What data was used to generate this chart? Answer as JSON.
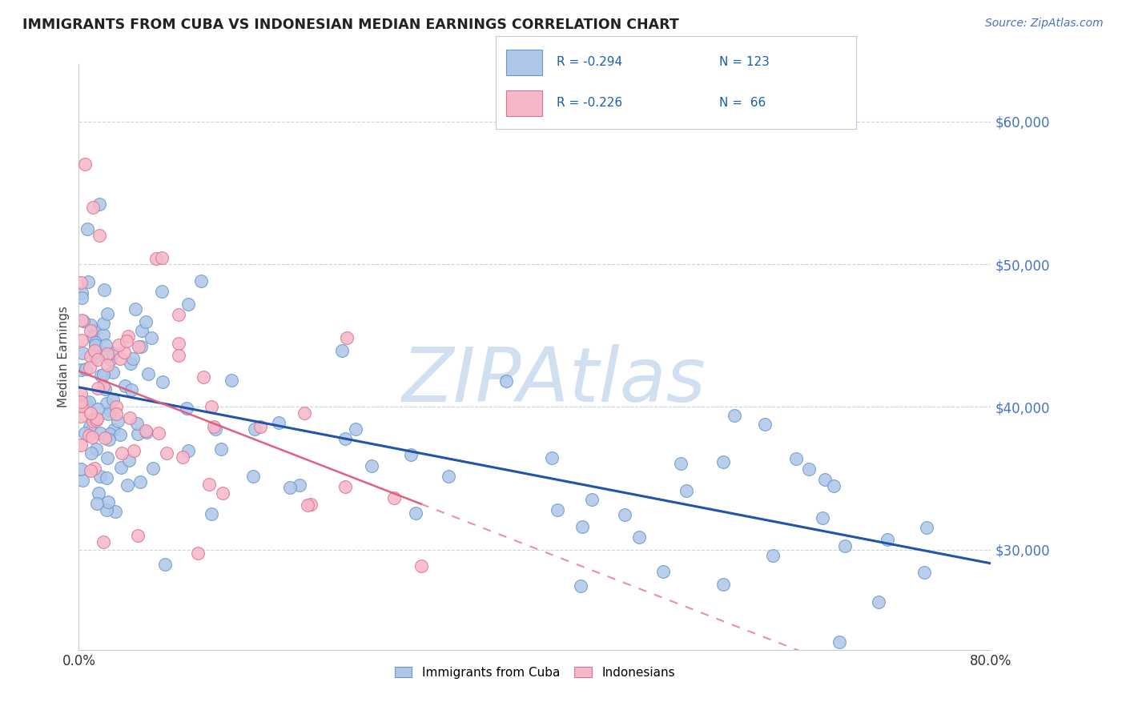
{
  "title": "IMMIGRANTS FROM CUBA VS INDONESIAN MEDIAN EARNINGS CORRELATION CHART",
  "source": "Source: ZipAtlas.com",
  "ylabel": "Median Earnings",
  "yticks": [
    30000,
    40000,
    50000,
    60000
  ],
  "ytick_labels": [
    "$30,000",
    "$40,000",
    "$50,000",
    "$60,000"
  ],
  "xlim": [
    0.0,
    80.0
  ],
  "ylim": [
    23000,
    64000
  ],
  "color_cuba": "#aec6e8",
  "color_cuba_edge": "#6699cc",
  "color_indonesia": "#f5b8c8",
  "color_indonesia_edge": "#e07090",
  "color_cuba_line": "#2255aa",
  "color_indonesia_line": "#e06080",
  "watermark": "ZIPAtlas",
  "watermark_color": "#ccddf0",
  "legend_r1": "R = -0.294",
  "legend_n1": "N = 123",
  "legend_r2": "R = -0.226",
  "legend_n2": "N =  66",
  "legend_label1": "Immigrants from Cuba",
  "legend_label2": "Indonesians"
}
